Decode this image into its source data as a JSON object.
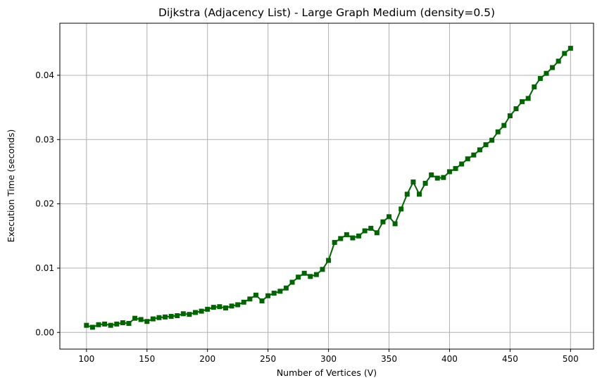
{
  "chart_data": {
    "type": "line",
    "title": "Dijkstra (Adjacency List) - Large Graph Medium (density=0.5)",
    "xlabel": "Number of Vertices (V)",
    "ylabel": "Execution Time (seconds)",
    "xlim": [
      78,
      519
    ],
    "ylim": [
      -0.0026,
      0.0481
    ],
    "xticks": [
      100,
      150,
      200,
      250,
      300,
      350,
      400,
      450,
      500
    ],
    "xtick_labels": [
      "100",
      "150",
      "200",
      "250",
      "300",
      "350",
      "400",
      "450",
      "500"
    ],
    "yticks": [
      0.0,
      0.01,
      0.02,
      0.03,
      0.04
    ],
    "ytick_labels": [
      "0.00",
      "0.01",
      "0.02",
      "0.03",
      "0.04"
    ],
    "grid": true,
    "marker": "square",
    "series": [
      {
        "name": "Dijkstra (Adjacency List)",
        "color": "#006400",
        "x": [
          100,
          105,
          110,
          115,
          120,
          125,
          130,
          135,
          140,
          145,
          150,
          155,
          160,
          165,
          170,
          175,
          180,
          185,
          190,
          195,
          200,
          205,
          210,
          215,
          220,
          225,
          230,
          235,
          240,
          245,
          250,
          255,
          260,
          265,
          270,
          275,
          280,
          285,
          290,
          295,
          300,
          305,
          310,
          315,
          320,
          325,
          330,
          335,
          340,
          345,
          350,
          355,
          360,
          365,
          370,
          375,
          380,
          385,
          390,
          395,
          400,
          405,
          410,
          415,
          420,
          425,
          430,
          435,
          440,
          445,
          450,
          455,
          460,
          465,
          470,
          475,
          480,
          485,
          490,
          495,
          500
        ],
        "values": [
          0.0011,
          0.0008,
          0.0012,
          0.0013,
          0.0011,
          0.0013,
          0.0015,
          0.0014,
          0.0022,
          0.002,
          0.0017,
          0.0021,
          0.0023,
          0.0024,
          0.0025,
          0.0026,
          0.0029,
          0.0028,
          0.0031,
          0.0033,
          0.0036,
          0.0039,
          0.004,
          0.0038,
          0.0041,
          0.0043,
          0.0047,
          0.0052,
          0.0058,
          0.0049,
          0.0057,
          0.0061,
          0.0064,
          0.0069,
          0.0078,
          0.0086,
          0.0092,
          0.0087,
          0.009,
          0.0098,
          0.0112,
          0.014,
          0.0146,
          0.0152,
          0.0147,
          0.015,
          0.0158,
          0.0162,
          0.0155,
          0.0172,
          0.018,
          0.0169,
          0.0192,
          0.0215,
          0.0234,
          0.0215,
          0.0232,
          0.0245,
          0.024,
          0.0241,
          0.025,
          0.0255,
          0.0262,
          0.027,
          0.0276,
          0.0284,
          0.0292,
          0.0299,
          0.0312,
          0.0322,
          0.0337,
          0.0348,
          0.0359,
          0.0364,
          0.0382,
          0.0395,
          0.0403,
          0.0412,
          0.0422,
          0.0434,
          0.0442
        ]
      }
    ]
  }
}
